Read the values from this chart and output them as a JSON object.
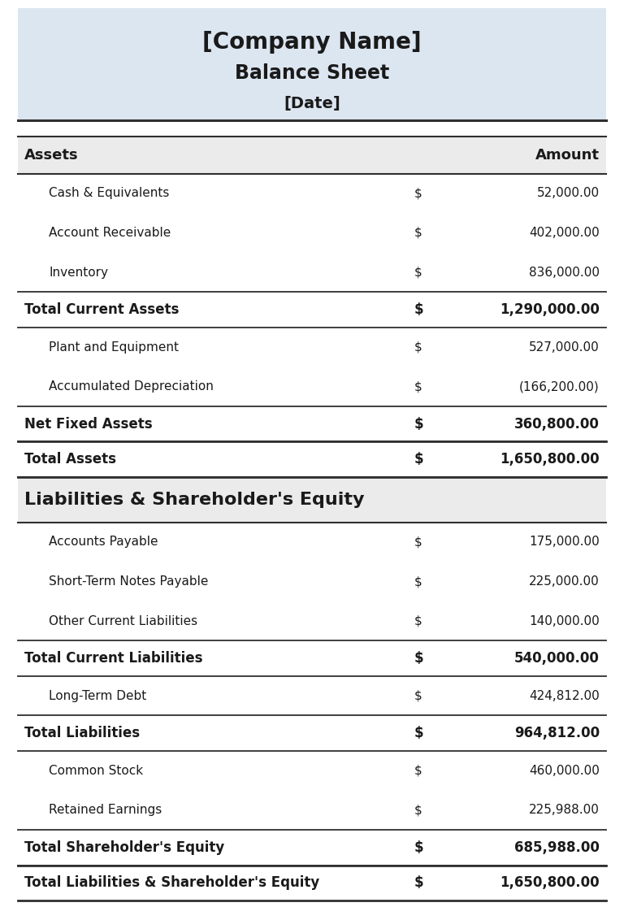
{
  "title_line1": "[Company Name]",
  "title_line2": "Balance Sheet",
  "title_line3": "[Date]",
  "header_bg": "#dce6f1",
  "section_header_bg": "#ebebeb",
  "white_bg": "#ffffff",
  "text_color": "#1a1a1a",
  "rows": [
    {
      "label": "Assets",
      "dollar": "",
      "amount": "Amount",
      "style": "section_header",
      "indent": false
    },
    {
      "label": "Cash & Equivalents",
      "dollar": "$",
      "amount": "52,000.00",
      "style": "normal",
      "indent": true
    },
    {
      "label": "Account Receivable",
      "dollar": "$",
      "amount": "402,000.00",
      "style": "normal",
      "indent": true
    },
    {
      "label": "Inventory",
      "dollar": "$",
      "amount": "836,000.00",
      "style": "normal",
      "indent": true
    },
    {
      "label": "Total Current Assets",
      "dollar": "$",
      "amount": "1,290,000.00",
      "style": "bold",
      "indent": false
    },
    {
      "label": "Plant and Equipment",
      "dollar": "$",
      "amount": "527,000.00",
      "style": "normal",
      "indent": true
    },
    {
      "label": "Accumulated Depreciation",
      "dollar": "$",
      "amount": "(166,200.00)",
      "style": "normal",
      "indent": true
    },
    {
      "label": "Net Fixed Assets",
      "dollar": "$",
      "amount": "360,800.00",
      "style": "bold",
      "indent": false
    },
    {
      "label": "Total Assets",
      "dollar": "$",
      "amount": "1,650,800.00",
      "style": "bold_thick",
      "indent": false
    },
    {
      "label": "Liabilities & Shareholder's Equity",
      "dollar": "",
      "amount": "",
      "style": "section_header_large",
      "indent": false
    },
    {
      "label": "Accounts Payable",
      "dollar": "$",
      "amount": "175,000.00",
      "style": "normal",
      "indent": true
    },
    {
      "label": "Short-Term Notes Payable",
      "dollar": "$",
      "amount": "225,000.00",
      "style": "normal",
      "indent": true
    },
    {
      "label": "Other Current Liabilities",
      "dollar": "$",
      "amount": "140,000.00",
      "style": "normal",
      "indent": true
    },
    {
      "label": "Total Current Liabilities",
      "dollar": "$",
      "amount": "540,000.00",
      "style": "bold",
      "indent": false
    },
    {
      "label": "Long-Term Debt",
      "dollar": "$",
      "amount": "424,812.00",
      "style": "normal",
      "indent": true
    },
    {
      "label": "Total Liabilities",
      "dollar": "$",
      "amount": "964,812.00",
      "style": "bold",
      "indent": false
    },
    {
      "label": "Common Stock",
      "dollar": "$",
      "amount": "460,000.00",
      "style": "normal",
      "indent": true
    },
    {
      "label": "Retained Earnings",
      "dollar": "$",
      "amount": "225,988.00",
      "style": "normal",
      "indent": true
    },
    {
      "label": "Total Shareholder's Equity",
      "dollar": "$",
      "amount": "685,988.00",
      "style": "bold",
      "indent": false
    },
    {
      "label": "Total Liabilities & Shareholder's Equity",
      "dollar": "$",
      "amount": "1,650,800.00",
      "style": "bold_thick",
      "indent": false
    }
  ],
  "line_color": "#2f2f2f",
  "fig_width": 7.68,
  "fig_height": 11.16,
  "dpi": 100
}
